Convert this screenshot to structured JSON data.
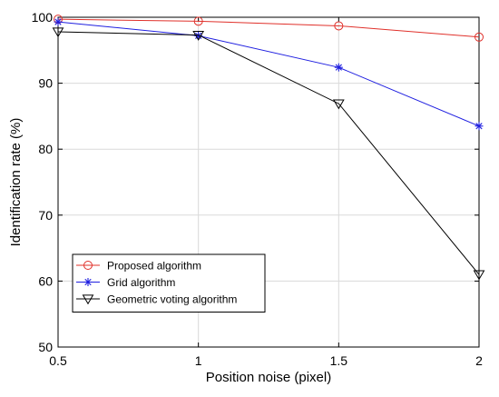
{
  "chart_data": {
    "type": "line",
    "title": "",
    "xlabel": "Position noise (pixel)",
    "ylabel": "Identification rate (%)",
    "x": [
      0.5,
      1,
      1.5,
      2
    ],
    "xlim": [
      0.5,
      2
    ],
    "ylim": [
      50,
      100
    ],
    "xticks": [
      "0.5",
      "1",
      "1.5",
      "2"
    ],
    "yticks": [
      "50",
      "60",
      "70",
      "80",
      "90",
      "100"
    ],
    "grid": true,
    "legend_position": "bottom-left",
    "series": [
      {
        "name": "Proposed algorithm",
        "values": [
          99.7,
          99.4,
          98.7,
          97.0
        ],
        "color": "#e0302a",
        "marker": "circle"
      },
      {
        "name": "Grid algorithm",
        "values": [
          99.3,
          97.2,
          92.4,
          83.5
        ],
        "color": "#1f1fe0",
        "marker": "asterisk"
      },
      {
        "name": "Geometric voting algorithm",
        "values": [
          97.8,
          97.3,
          86.9,
          61.0
        ],
        "color": "#000000",
        "marker": "triangle-down"
      }
    ]
  }
}
